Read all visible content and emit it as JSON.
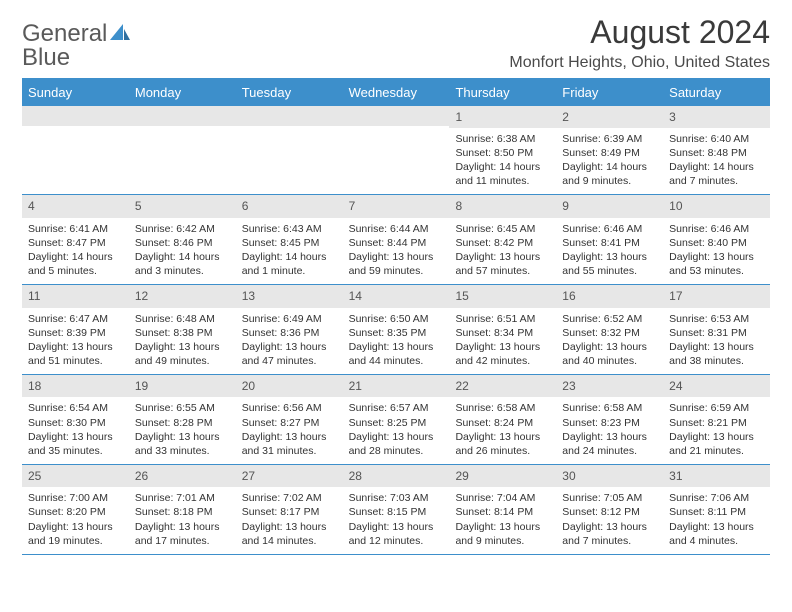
{
  "logo": {
    "word1": "General",
    "word2": "Blue"
  },
  "title": "August 2024",
  "location": "Monfort Heights, Ohio, United States",
  "colors": {
    "accent": "#3d8fcb",
    "headerText": "#ffffff",
    "grayBar": "#e7e7e7"
  },
  "dayNames": [
    "Sunday",
    "Monday",
    "Tuesday",
    "Wednesday",
    "Thursday",
    "Friday",
    "Saturday"
  ],
  "weeks": [
    [
      {
        "day": "",
        "sunrise": "",
        "sunset": "",
        "daylight": ""
      },
      {
        "day": "",
        "sunrise": "",
        "sunset": "",
        "daylight": ""
      },
      {
        "day": "",
        "sunrise": "",
        "sunset": "",
        "daylight": ""
      },
      {
        "day": "",
        "sunrise": "",
        "sunset": "",
        "daylight": ""
      },
      {
        "day": "1",
        "sunrise": "Sunrise: 6:38 AM",
        "sunset": "Sunset: 8:50 PM",
        "daylight": "Daylight: 14 hours and 11 minutes."
      },
      {
        "day": "2",
        "sunrise": "Sunrise: 6:39 AM",
        "sunset": "Sunset: 8:49 PM",
        "daylight": "Daylight: 14 hours and 9 minutes."
      },
      {
        "day": "3",
        "sunrise": "Sunrise: 6:40 AM",
        "sunset": "Sunset: 8:48 PM",
        "daylight": "Daylight: 14 hours and 7 minutes."
      }
    ],
    [
      {
        "day": "4",
        "sunrise": "Sunrise: 6:41 AM",
        "sunset": "Sunset: 8:47 PM",
        "daylight": "Daylight: 14 hours and 5 minutes."
      },
      {
        "day": "5",
        "sunrise": "Sunrise: 6:42 AM",
        "sunset": "Sunset: 8:46 PM",
        "daylight": "Daylight: 14 hours and 3 minutes."
      },
      {
        "day": "6",
        "sunrise": "Sunrise: 6:43 AM",
        "sunset": "Sunset: 8:45 PM",
        "daylight": "Daylight: 14 hours and 1 minute."
      },
      {
        "day": "7",
        "sunrise": "Sunrise: 6:44 AM",
        "sunset": "Sunset: 8:44 PM",
        "daylight": "Daylight: 13 hours and 59 minutes."
      },
      {
        "day": "8",
        "sunrise": "Sunrise: 6:45 AM",
        "sunset": "Sunset: 8:42 PM",
        "daylight": "Daylight: 13 hours and 57 minutes."
      },
      {
        "day": "9",
        "sunrise": "Sunrise: 6:46 AM",
        "sunset": "Sunset: 8:41 PM",
        "daylight": "Daylight: 13 hours and 55 minutes."
      },
      {
        "day": "10",
        "sunrise": "Sunrise: 6:46 AM",
        "sunset": "Sunset: 8:40 PM",
        "daylight": "Daylight: 13 hours and 53 minutes."
      }
    ],
    [
      {
        "day": "11",
        "sunrise": "Sunrise: 6:47 AM",
        "sunset": "Sunset: 8:39 PM",
        "daylight": "Daylight: 13 hours and 51 minutes."
      },
      {
        "day": "12",
        "sunrise": "Sunrise: 6:48 AM",
        "sunset": "Sunset: 8:38 PM",
        "daylight": "Daylight: 13 hours and 49 minutes."
      },
      {
        "day": "13",
        "sunrise": "Sunrise: 6:49 AM",
        "sunset": "Sunset: 8:36 PM",
        "daylight": "Daylight: 13 hours and 47 minutes."
      },
      {
        "day": "14",
        "sunrise": "Sunrise: 6:50 AM",
        "sunset": "Sunset: 8:35 PM",
        "daylight": "Daylight: 13 hours and 44 minutes."
      },
      {
        "day": "15",
        "sunrise": "Sunrise: 6:51 AM",
        "sunset": "Sunset: 8:34 PM",
        "daylight": "Daylight: 13 hours and 42 minutes."
      },
      {
        "day": "16",
        "sunrise": "Sunrise: 6:52 AM",
        "sunset": "Sunset: 8:32 PM",
        "daylight": "Daylight: 13 hours and 40 minutes."
      },
      {
        "day": "17",
        "sunrise": "Sunrise: 6:53 AM",
        "sunset": "Sunset: 8:31 PM",
        "daylight": "Daylight: 13 hours and 38 minutes."
      }
    ],
    [
      {
        "day": "18",
        "sunrise": "Sunrise: 6:54 AM",
        "sunset": "Sunset: 8:30 PM",
        "daylight": "Daylight: 13 hours and 35 minutes."
      },
      {
        "day": "19",
        "sunrise": "Sunrise: 6:55 AM",
        "sunset": "Sunset: 8:28 PM",
        "daylight": "Daylight: 13 hours and 33 minutes."
      },
      {
        "day": "20",
        "sunrise": "Sunrise: 6:56 AM",
        "sunset": "Sunset: 8:27 PM",
        "daylight": "Daylight: 13 hours and 31 minutes."
      },
      {
        "day": "21",
        "sunrise": "Sunrise: 6:57 AM",
        "sunset": "Sunset: 8:25 PM",
        "daylight": "Daylight: 13 hours and 28 minutes."
      },
      {
        "day": "22",
        "sunrise": "Sunrise: 6:58 AM",
        "sunset": "Sunset: 8:24 PM",
        "daylight": "Daylight: 13 hours and 26 minutes."
      },
      {
        "day": "23",
        "sunrise": "Sunrise: 6:58 AM",
        "sunset": "Sunset: 8:23 PM",
        "daylight": "Daylight: 13 hours and 24 minutes."
      },
      {
        "day": "24",
        "sunrise": "Sunrise: 6:59 AM",
        "sunset": "Sunset: 8:21 PM",
        "daylight": "Daylight: 13 hours and 21 minutes."
      }
    ],
    [
      {
        "day": "25",
        "sunrise": "Sunrise: 7:00 AM",
        "sunset": "Sunset: 8:20 PM",
        "daylight": "Daylight: 13 hours and 19 minutes."
      },
      {
        "day": "26",
        "sunrise": "Sunrise: 7:01 AM",
        "sunset": "Sunset: 8:18 PM",
        "daylight": "Daylight: 13 hours and 17 minutes."
      },
      {
        "day": "27",
        "sunrise": "Sunrise: 7:02 AM",
        "sunset": "Sunset: 8:17 PM",
        "daylight": "Daylight: 13 hours and 14 minutes."
      },
      {
        "day": "28",
        "sunrise": "Sunrise: 7:03 AM",
        "sunset": "Sunset: 8:15 PM",
        "daylight": "Daylight: 13 hours and 12 minutes."
      },
      {
        "day": "29",
        "sunrise": "Sunrise: 7:04 AM",
        "sunset": "Sunset: 8:14 PM",
        "daylight": "Daylight: 13 hours and 9 minutes."
      },
      {
        "day": "30",
        "sunrise": "Sunrise: 7:05 AM",
        "sunset": "Sunset: 8:12 PM",
        "daylight": "Daylight: 13 hours and 7 minutes."
      },
      {
        "day": "31",
        "sunrise": "Sunrise: 7:06 AM",
        "sunset": "Sunset: 8:11 PM",
        "daylight": "Daylight: 13 hours and 4 minutes."
      }
    ]
  ]
}
